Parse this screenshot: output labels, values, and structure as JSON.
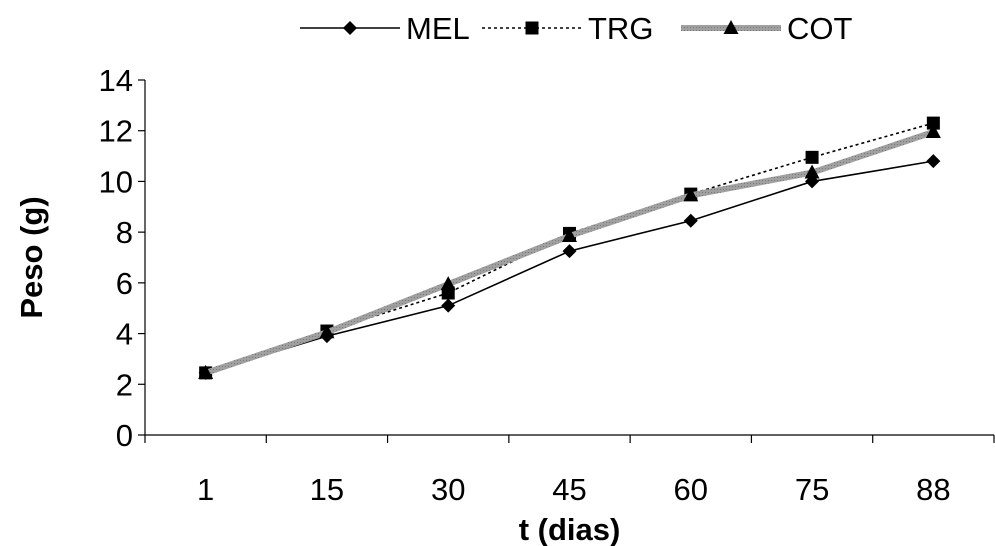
{
  "chart_data": {
    "type": "line",
    "title": "",
    "xlabel": "t (dias)",
    "ylabel": "Peso (g)",
    "categories": [
      "1",
      "15",
      "30",
      "45",
      "60",
      "75",
      "88"
    ],
    "ylim": [
      0,
      14
    ],
    "yticks": [
      0,
      2,
      4,
      6,
      8,
      10,
      12,
      14
    ],
    "grid": false,
    "legend_position": "top",
    "series": [
      {
        "name": "MEL",
        "marker": "diamond",
        "line_style": "solid",
        "color": "#000000",
        "values": [
          2.45,
          3.9,
          5.1,
          7.25,
          8.45,
          10.0,
          10.8
        ]
      },
      {
        "name": "TRG",
        "marker": "square",
        "line_style": "dotted",
        "color": "#000000",
        "values": [
          2.45,
          4.1,
          5.6,
          7.95,
          9.5,
          10.95,
          12.3
        ]
      },
      {
        "name": "COT",
        "marker": "triangle",
        "line_style": "thick-gray",
        "color": "#999999",
        "values": [
          2.45,
          4.05,
          5.95,
          7.85,
          9.45,
          10.35,
          11.95
        ]
      }
    ]
  }
}
